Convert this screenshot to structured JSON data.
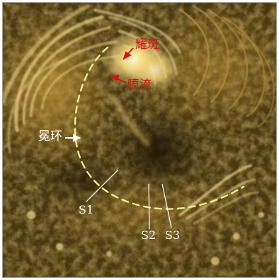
{
  "image": {
    "description_colors": {
      "background": "#3a2c0a",
      "bright": "#f6e2a0",
      "loop_path": "#f0f08a",
      "label_red": "#d8121a",
      "label_white": "#ffffff"
    }
  },
  "labels": {
    "flare": "耀斑",
    "jet": "喷流",
    "loop": "冕环",
    "s1": "S1",
    "s2": "S2",
    "s3": "S3"
  }
}
